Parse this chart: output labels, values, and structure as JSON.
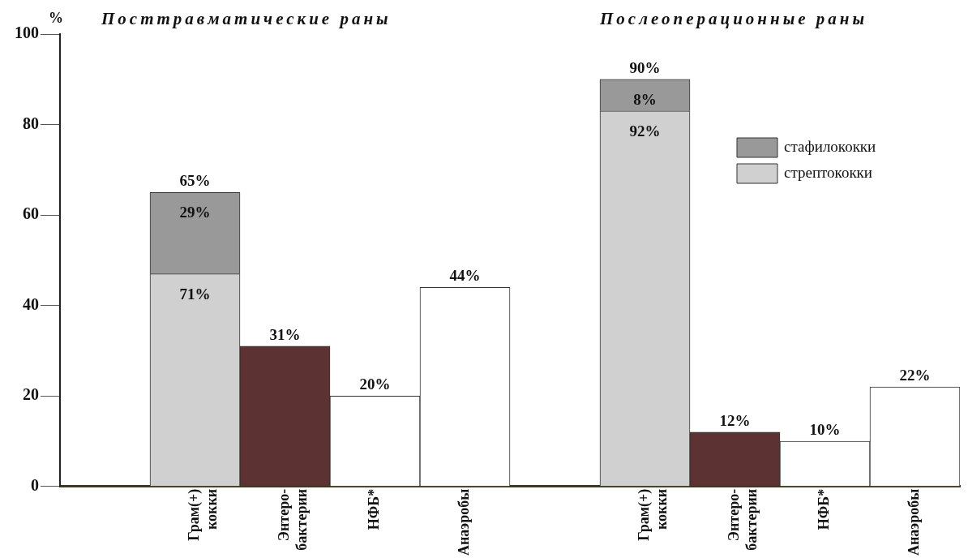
{
  "chart_data": {
    "type": "bar",
    "stacked": true,
    "ylabel": "%",
    "annotations": [
      "Посттравматические раны",
      "Послеоперационные раны",
      {
        "text": "29%",
        "x": "Грам(+) кокки",
        "y": 65
      },
      {
        "text": "71%",
        "x": "Грам(+) кокки",
        "y": 47
      },
      "8%",
      "92%"
    ],
    "categories": [
      null,
      "Грам(+) кокки",
      "Энтеро-бактерии",
      "НФБ*",
      "Анаэробы",
      null,
      "Грам(+) кокки",
      "Энтеро-бактерии",
      "НФБ*",
      "Анаэробы"
    ],
    "series": [
      {
        "name": "стрептококки",
        "color": "#d0d0d0",
        "values": [
          null,
          47,
          null,
          null,
          null,
          null,
          83,
          null,
          null,
          null
        ]
      },
      {
        "name": "стафилококки",
        "color": "#999999",
        "values": [
          null,
          18,
          null,
          null,
          null,
          null,
          7,
          null,
          null,
          null
        ]
      },
      {
        "colors": [
          null,
          null,
          "#5c3232",
          "#ffffff",
          "#ffffff",
          null,
          null,
          "#5c3232",
          "#ffffff",
          "#ffffff"
        ],
        "values": [
          null,
          null,
          31,
          20,
          44,
          null,
          null,
          12,
          10,
          22
        ],
        "value_labels": [
          null,
          null,
          "31%",
          "20%",
          "44%",
          null,
          null,
          "12%",
          "10%",
          "22%"
        ]
      }
    ],
    "totals": [
      null,
      "65%",
      null,
      null,
      null,
      null,
      "90%",
      null,
      null,
      null
    ],
    "ylim": [
      0,
      100
    ],
    "yticks": [
      0,
      20,
      40,
      60,
      80,
      100
    ],
    "grid": false,
    "legend": "top right"
  }
}
